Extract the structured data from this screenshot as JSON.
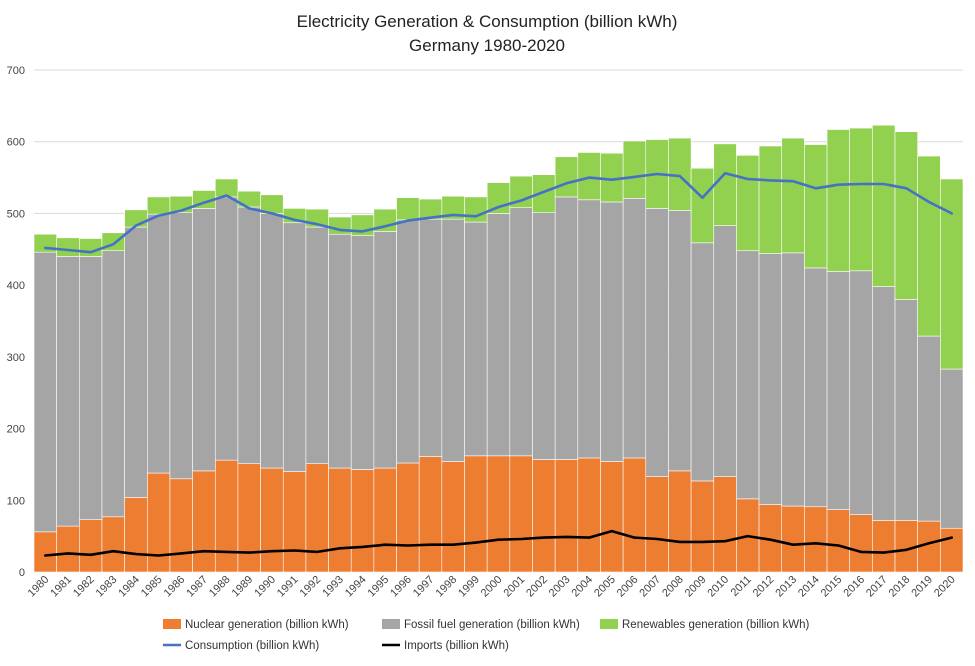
{
  "chart_data": {
    "type": "bar",
    "stacked": true,
    "title": "Electricity Generation & Consumption (billion kWh)",
    "subtitle": "Germany 1980-2020",
    "xlabel": "",
    "ylabel": "",
    "ylim": [
      0,
      700
    ],
    "y_ticks": [
      0,
      100,
      200,
      300,
      400,
      500,
      600,
      700
    ],
    "grid": true,
    "legend_position": "bottom",
    "categories": [
      "1980",
      "1981",
      "1982",
      "1983",
      "1984",
      "1985",
      "1986",
      "1987",
      "1988",
      "1989",
      "1990",
      "1991",
      "1992",
      "1993",
      "1994",
      "1995",
      "1996",
      "1997",
      "1998",
      "1999",
      "2000",
      "2001",
      "2002",
      "2003",
      "2004",
      "2005",
      "2006",
      "2007",
      "2008",
      "2009",
      "2010",
      "2011",
      "2012",
      "2013",
      "2014",
      "2015",
      "2016",
      "2017",
      "2018",
      "2019",
      "2020"
    ],
    "bar_series": [
      {
        "name": "Nuclear generation (billion kWh)",
        "color": "#ED7D31",
        "values": [
          56,
          64,
          73,
          77,
          104,
          138,
          130,
          141,
          156,
          151,
          145,
          140,
          151,
          145,
          143,
          145,
          152,
          161,
          154,
          162,
          162,
          162,
          157,
          157,
          159,
          154,
          159,
          133,
          141,
          127,
          133,
          102,
          94,
          92,
          91,
          87,
          80,
          72,
          72,
          71,
          61
        ]
      },
      {
        "name": "Fossil fuel generation (billion kWh)",
        "color": "#A5A5A5",
        "values": [
          390,
          376,
          367,
          371,
          377,
          361,
          371,
          366,
          367,
          358,
          355,
          347,
          330,
          326,
          326,
          330,
          339,
          331,
          338,
          326,
          338,
          346,
          344,
          366,
          360,
          362,
          362,
          374,
          363,
          332,
          350,
          346,
          350,
          353,
          333,
          332,
          340,
          326,
          308,
          258,
          222
        ]
      },
      {
        "name": "Renewables generation (billion kWh)",
        "color": "#92D050",
        "values": [
          25,
          26,
          25,
          25,
          24,
          24,
          23,
          25,
          25,
          22,
          26,
          20,
          25,
          24,
          29,
          31,
          31,
          28,
          32,
          35,
          43,
          44,
          53,
          56,
          66,
          68,
          80,
          96,
          101,
          104,
          114,
          133,
          150,
          160,
          172,
          198,
          199,
          225,
          234,
          251,
          265
        ]
      }
    ],
    "line_series": [
      {
        "name": "Consumption (billion kWh)",
        "color": "#4472C4",
        "values": [
          452,
          449,
          446,
          457,
          483,
          497,
          504,
          515,
          525,
          507,
          500,
          491,
          485,
          477,
          475,
          482,
          490,
          494,
          498,
          496,
          509,
          518,
          530,
          542,
          550,
          547,
          551,
          555,
          552,
          522,
          556,
          548,
          546,
          545,
          535,
          540,
          541,
          541,
          535,
          516,
          500
        ]
      },
      {
        "name": "Imports (billion kWh)",
        "color": "#000000",
        "values": [
          23,
          26,
          24,
          29,
          25,
          23,
          26,
          29,
          28,
          27,
          29,
          30,
          28,
          33,
          35,
          38,
          37,
          38,
          38,
          41,
          45,
          46,
          48,
          49,
          48,
          57,
          48,
          46,
          42,
          42,
          43,
          50,
          45,
          38,
          40,
          37,
          28,
          27,
          31,
          40,
          48
        ]
      }
    ]
  }
}
